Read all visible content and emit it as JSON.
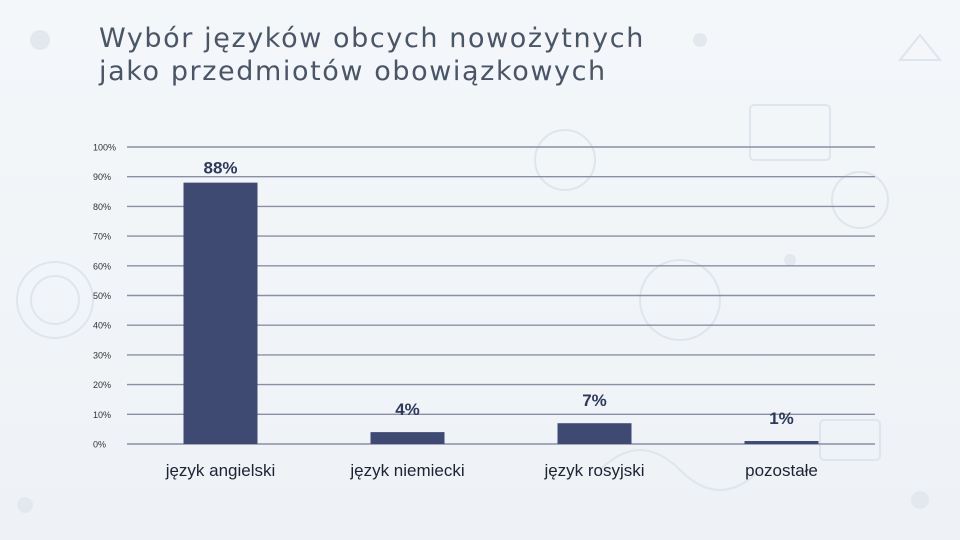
{
  "slide": {
    "title_line1": "Wybór języków obcych nowożytnych",
    "title_line2": "jako przedmiotów obowiązkowych"
  },
  "colors": {
    "bar": "#3f4a73",
    "grid": "#8a8fa6",
    "title": "#4a5566",
    "label": "#2f3a5a"
  },
  "chart_data": {
    "type": "bar",
    "title": "",
    "xlabel": "",
    "ylabel": "",
    "categories": [
      "język angielski",
      "język niemiecki",
      "język rosyjski",
      "pozostałe"
    ],
    "values": [
      88,
      4,
      7,
      1
    ],
    "data_labels": [
      "88%",
      "4%",
      "7%",
      "1%"
    ],
    "ylim": [
      0,
      100
    ],
    "yticks": [
      0,
      10,
      20,
      30,
      40,
      50,
      60,
      70,
      80,
      90,
      100
    ],
    "ytick_labels": [
      "0%",
      "10%",
      "20%",
      "30%",
      "40%",
      "50%",
      "60%",
      "70%",
      "80%",
      "90%",
      "100%"
    ],
    "grid": true,
    "legend": "none"
  }
}
